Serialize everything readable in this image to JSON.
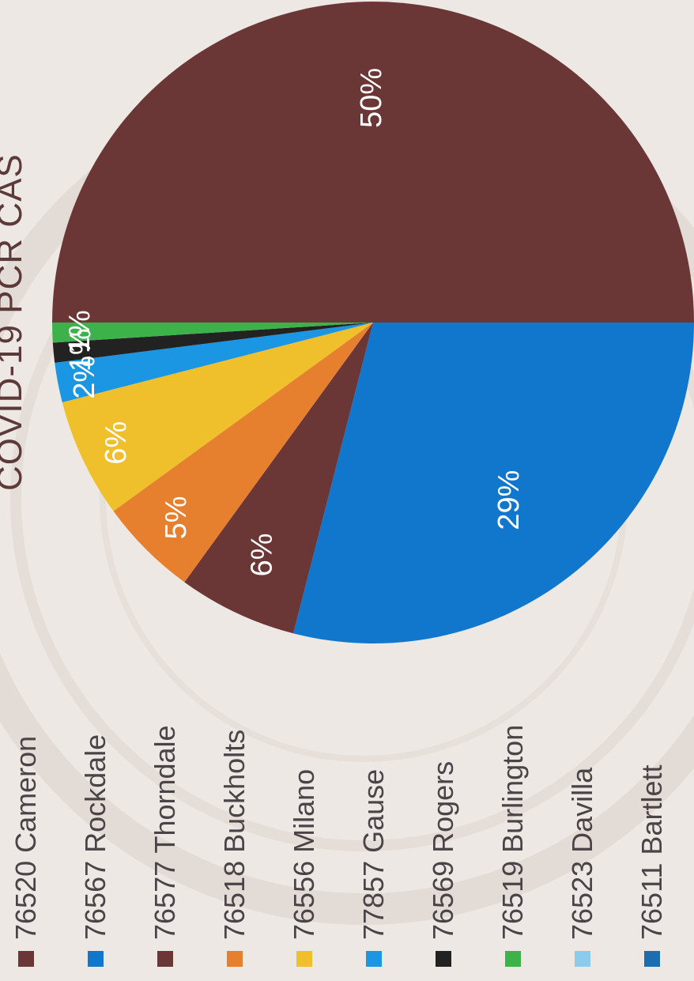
{
  "chart_data": {
    "type": "pie",
    "title": "COVID-19 PCR CAS",
    "legend_position": "left",
    "slices": [
      {
        "label": "76520 Cameron",
        "value": 50,
        "display": "50%",
        "color": "#6b3636"
      },
      {
        "label": "76567 Rockdale",
        "value": 29,
        "display": "29%",
        "color": "#1177cc"
      },
      {
        "label": "76577 Thorndale",
        "value": 6,
        "display": "6%",
        "color": "#6b3636"
      },
      {
        "label": "76518 Buckholts",
        "value": 5,
        "display": "5%",
        "color": "#e67f2e"
      },
      {
        "label": "76556 Milano",
        "value": 6,
        "display": "6%",
        "color": "#efc02c"
      },
      {
        "label": "77857 Gause",
        "value": 2,
        "display": "2%",
        "color": "#1a96e2"
      },
      {
        "label": "76569 Rogers",
        "value": 1,
        "display": "1%",
        "color": "#222222"
      },
      {
        "label": "76519 Burlington",
        "value": 1,
        "display": "1%",
        "color": "#3db24a"
      },
      {
        "label": "76523 Davilla",
        "value": 0,
        "display": "",
        "color": "#8ccbea"
      },
      {
        "label": "76511 Bartlett",
        "value": 0,
        "display": "",
        "color": "#1b6fb0"
      }
    ]
  }
}
